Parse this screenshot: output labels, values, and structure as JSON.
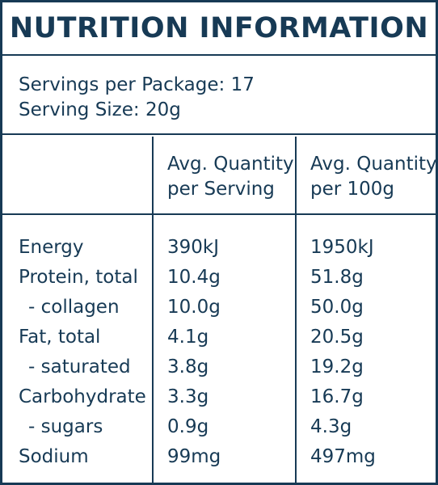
{
  "title": "NUTRITION INFORMATION",
  "servings_per_package": "Servings per Package: 17",
  "serving_size": "Serving Size: 20g",
  "headers": {
    "per_serving_line1": "Avg. Quantity",
    "per_serving_line2": "per Serving",
    "per_100_line1": "Avg. Quantity",
    "per_100_line2": "per 100g"
  },
  "rows": [
    {
      "name": "Energy",
      "per_serving": "390kJ",
      "per_100g": "1950kJ"
    },
    {
      "name": "Protein, total",
      "per_serving": "10.4g",
      "per_100g": "51.8g"
    },
    {
      "name": "- collagen",
      "per_serving": "10.0g",
      "per_100g": "50.0g"
    },
    {
      "name": "Fat, total",
      "per_serving": "4.1g",
      "per_100g": "20.5g"
    },
    {
      "name": "- saturated",
      "per_serving": "3.8g",
      "per_100g": "19.2g"
    },
    {
      "name": "Carbohydrate",
      "per_serving": "3.3g",
      "per_100g": "16.7g"
    },
    {
      "name": "- sugars",
      "per_serving": "0.9g",
      "per_100g": "4.3g"
    },
    {
      "name": "Sodium",
      "per_serving": "99mg",
      "per_100g": "497mg"
    }
  ],
  "colors": {
    "ink": "#173a55",
    "background": "#ffffff"
  }
}
